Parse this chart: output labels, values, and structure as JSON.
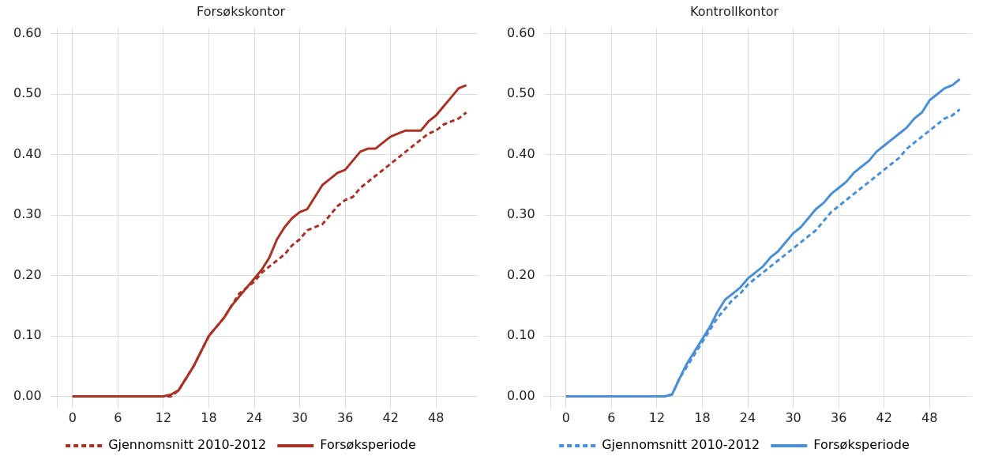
{
  "chart_data": [
    {
      "type": "line",
      "title": "Forsøkskontor",
      "x": [
        0,
        12,
        13,
        14,
        15,
        16,
        17,
        18,
        19,
        20,
        21,
        22,
        23,
        24,
        25,
        26,
        27,
        28,
        29,
        30,
        31,
        32,
        33,
        34,
        35,
        36,
        37,
        38,
        39,
        40,
        41,
        42,
        43,
        44,
        45,
        46,
        47,
        48,
        49,
        50,
        51,
        52
      ],
      "series": [
        {
          "name": "Gjennomsnitt 2010-2012",
          "color": "#a93226",
          "line_style": "dashed",
          "values": [
            0,
            0,
            0,
            0.01,
            0.03,
            0.05,
            0.075,
            0.1,
            0.115,
            0.13,
            0.15,
            0.17,
            0.18,
            0.19,
            0.205,
            0.215,
            0.225,
            0.235,
            0.25,
            0.26,
            0.275,
            0.28,
            0.285,
            0.3,
            0.315,
            0.325,
            0.33,
            0.345,
            0.355,
            0.365,
            0.375,
            0.385,
            0.395,
            0.405,
            0.415,
            0.425,
            0.435,
            0.44,
            0.45,
            0.455,
            0.46,
            0.47
          ]
        },
        {
          "name": "Forsøksperiode",
          "color": "#a93226",
          "line_style": "solid",
          "values": [
            0,
            0,
            0.003,
            0.01,
            0.03,
            0.05,
            0.075,
            0.1,
            0.115,
            0.13,
            0.15,
            0.165,
            0.18,
            0.195,
            0.21,
            0.23,
            0.26,
            0.28,
            0.295,
            0.305,
            0.31,
            0.33,
            0.35,
            0.36,
            0.37,
            0.375,
            0.39,
            0.405,
            0.41,
            0.41,
            0.42,
            0.43,
            0.435,
            0.44,
            0.44,
            0.44,
            0.455,
            0.465,
            0.48,
            0.495,
            0.51,
            0.515
          ]
        }
      ],
      "xlim": [
        -2,
        53.5
      ],
      "xticks": [
        0,
        6,
        12,
        18,
        24,
        30,
        36,
        42,
        48
      ],
      "ylim": [
        -0.02,
        0.61
      ],
      "yticks": [
        {
          "value": 0,
          "label": "0.00"
        },
        {
          "value": 0.1,
          "label": "0.10"
        },
        {
          "value": 0.2,
          "label": "0.20"
        },
        {
          "value": 0.3,
          "label": "0.30"
        },
        {
          "value": 0.4,
          "label": "0.40"
        },
        {
          "value": 0.5,
          "label": "0.50"
        },
        {
          "value": 0.6,
          "label": "0.60"
        }
      ],
      "grid": true,
      "legend": "bottom",
      "marker": "none"
    },
    {
      "type": "line",
      "title": "Kontrollkontor",
      "x": [
        0,
        12,
        13,
        14,
        15,
        16,
        17,
        18,
        19,
        20,
        21,
        22,
        23,
        24,
        25,
        26,
        27,
        28,
        29,
        30,
        31,
        32,
        33,
        34,
        35,
        36,
        37,
        38,
        39,
        40,
        41,
        42,
        43,
        44,
        45,
        46,
        47,
        48,
        49,
        50,
        51,
        52
      ],
      "series": [
        {
          "name": "Gjennomsnitt 2010-2012",
          "color": "#4a8fd4",
          "line_style": "dashed",
          "values": [
            0,
            0,
            0,
            0.003,
            0.03,
            0.05,
            0.07,
            0.09,
            0.11,
            0.13,
            0.145,
            0.16,
            0.17,
            0.185,
            0.195,
            0.205,
            0.215,
            0.225,
            0.235,
            0.245,
            0.255,
            0.265,
            0.275,
            0.29,
            0.305,
            0.315,
            0.325,
            0.335,
            0.345,
            0.355,
            0.365,
            0.375,
            0.385,
            0.395,
            0.41,
            0.42,
            0.43,
            0.44,
            0.45,
            0.46,
            0.465,
            0.475
          ]
        },
        {
          "name": "Forsøksperiode",
          "color": "#4a8fd4",
          "line_style": "solid",
          "values": [
            0,
            0,
            0,
            0.003,
            0.03,
            0.055,
            0.075,
            0.095,
            0.115,
            0.14,
            0.16,
            0.17,
            0.18,
            0.195,
            0.205,
            0.215,
            0.23,
            0.24,
            0.255,
            0.27,
            0.28,
            0.295,
            0.31,
            0.32,
            0.335,
            0.345,
            0.355,
            0.37,
            0.38,
            0.39,
            0.405,
            0.415,
            0.425,
            0.435,
            0.445,
            0.46,
            0.47,
            0.49,
            0.5,
            0.51,
            0.515,
            0.525
          ]
        }
      ],
      "xlim": [
        -2,
        53.5
      ],
      "xticks": [
        0,
        6,
        12,
        18,
        24,
        30,
        36,
        42,
        48
      ],
      "ylim": [
        -0.02,
        0.61
      ],
      "yticks": [
        {
          "value": 0,
          "label": "0.00"
        },
        {
          "value": 0.1,
          "label": "0.10"
        },
        {
          "value": 0.2,
          "label": "0.20"
        },
        {
          "value": 0.3,
          "label": "0.30"
        },
        {
          "value": 0.4,
          "label": "0.40"
        },
        {
          "value": 0.5,
          "label": "0.50"
        },
        {
          "value": 0.6,
          "label": "0.60"
        }
      ],
      "grid": true,
      "legend": "bottom",
      "marker": "none"
    }
  ]
}
